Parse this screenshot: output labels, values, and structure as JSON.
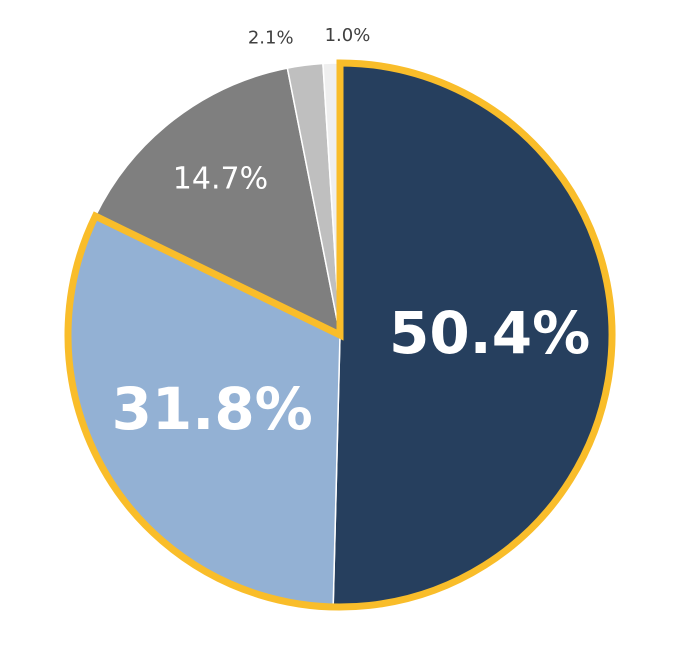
{
  "chart_data": {
    "type": "pie",
    "values": [
      50.4,
      31.8,
      14.7,
      2.1,
      1.0
    ],
    "value_labels": [
      "50.4%",
      "31.8%",
      "14.7%",
      "2.1%",
      "1.0%"
    ],
    "colors": [
      "#263f5e",
      "#93b1d4",
      "#7f7f7f",
      "#bfbfbf",
      "#efefef"
    ],
    "highlighted": [
      0,
      1
    ],
    "highlight_color": "#f9bd2a"
  }
}
